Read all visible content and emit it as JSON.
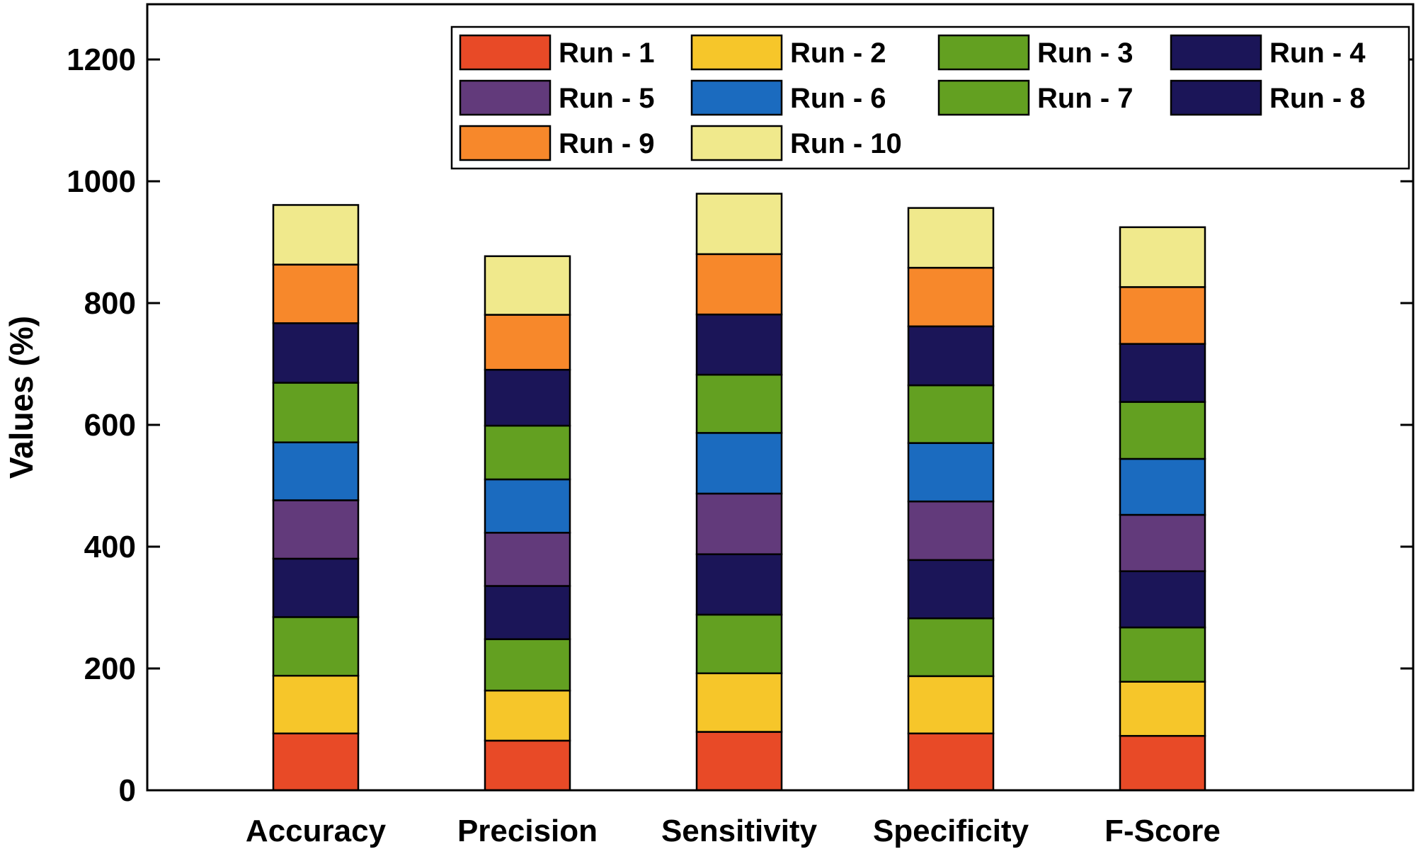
{
  "chart_data": {
    "type": "bar",
    "stacked": true,
    "title": "",
    "xlabel": "",
    "ylabel": "Values (%)",
    "ylim": [
      0,
      1280
    ],
    "yticks": [
      0,
      200,
      400,
      600,
      800,
      1000,
      1200
    ],
    "grid": false,
    "legend_position": "top-right",
    "categories": [
      "Accuracy",
      "Precision",
      "Sensitivity",
      "Specificity",
      "F-Score"
    ],
    "series": [
      {
        "name": "Run - 1",
        "color": "#e84a27",
        "values": [
          93.3,
          81.5,
          95.9,
          93.3,
          89.3
        ]
      },
      {
        "name": "Run - 2",
        "color": "#f6c62a",
        "values": [
          94.8,
          82.2,
          96.2,
          94.1,
          88.9
        ]
      },
      {
        "name": "Run - 3",
        "color": "#63a021",
        "values": [
          96.3,
          84.4,
          96.3,
          94.9,
          89.2
        ]
      },
      {
        "name": "Run - 4",
        "color": "#1b1558",
        "values": [
          95.9,
          87.4,
          99.2,
          95.8,
          92.3
        ]
      },
      {
        "name": "Run - 5",
        "color": "#623a7b",
        "values": [
          95.9,
          87.4,
          99.6,
          96.2,
          92.6
        ]
      },
      {
        "name": "Run - 6",
        "color": "#1b6bbf",
        "values": [
          95.1,
          87.6,
          99.6,
          95.9,
          91.9
        ]
      },
      {
        "name": "Run - 7",
        "color": "#63a021",
        "values": [
          97.9,
          88.2,
          95.6,
          94.8,
          93.5
        ]
      },
      {
        "name": "Run - 8",
        "color": "#1b1558",
        "values": [
          97.8,
          91.8,
          98.9,
          96.8,
          95.3
        ]
      },
      {
        "name": "Run - 9",
        "color": "#f7882b",
        "values": [
          96.2,
          90.3,
          99.1,
          96.2,
          93.3
        ]
      },
      {
        "name": "Run - 10",
        "color": "#f0e98c",
        "values": [
          97.9,
          96.2,
          99.2,
          98.2,
          98.3
        ]
      }
    ]
  }
}
